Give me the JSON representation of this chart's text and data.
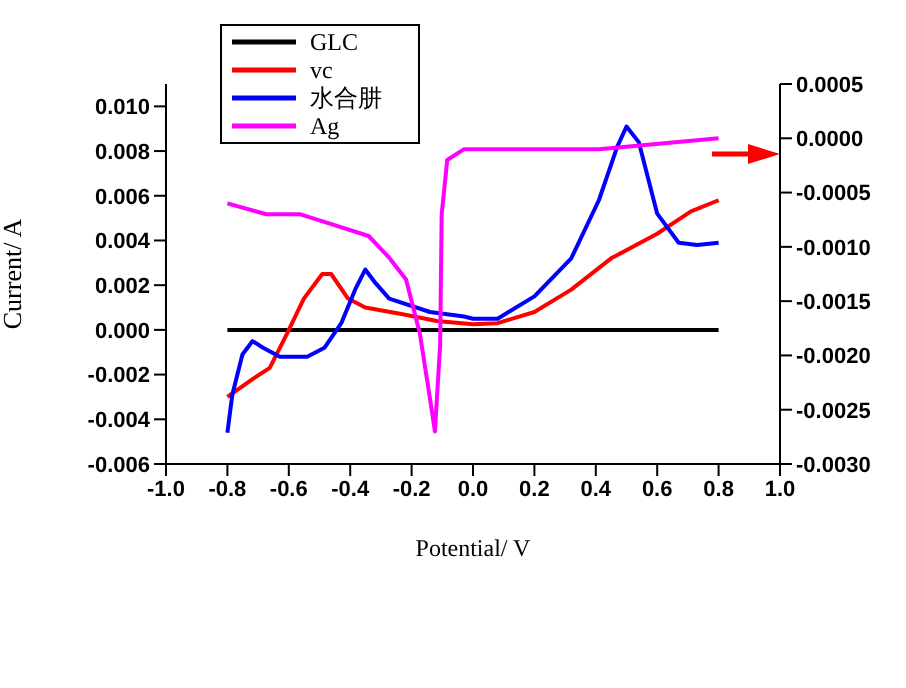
{
  "chart_data": {
    "type": "line",
    "xlabel": "Potential/ V",
    "ylabel": "Current/ A",
    "xlim": [
      -1.0,
      1.0
    ],
    "xticks": [
      {
        "value": -1.0,
        "label": "-1.0"
      },
      {
        "value": -0.8,
        "label": "-0.8"
      },
      {
        "value": -0.6,
        "label": "-0.6"
      },
      {
        "value": -0.4,
        "label": "-0.4"
      },
      {
        "value": -0.2,
        "label": "-0.2"
      },
      {
        "value": 0,
        "label": "0.0"
      },
      {
        "value": 0.2,
        "label": "0.2"
      },
      {
        "value": 0.4,
        "label": "0.4"
      },
      {
        "value": 0.6,
        "label": "0.6"
      },
      {
        "value": 0.8,
        "label": "0.8"
      },
      {
        "value": 1.0,
        "label": "1.0"
      }
    ],
    "ylim": [
      -0.006,
      0.011
    ],
    "yticks": [
      {
        "value": -0.006,
        "label": "-0.006"
      },
      {
        "value": -0.004,
        "label": "-0.004"
      },
      {
        "value": -0.002,
        "label": "-0.002"
      },
      {
        "value": 0,
        "label": "0.000"
      },
      {
        "value": 0.002,
        "label": "0.002"
      },
      {
        "value": 0.004,
        "label": "0.004"
      },
      {
        "value": 0.006,
        "label": "0.006"
      },
      {
        "value": 0.008,
        "label": "0.008"
      },
      {
        "value": 0.01,
        "label": "0.010"
      }
    ],
    "y2lim": [
      -0.003,
      0.0005
    ],
    "y2ticks": [
      {
        "value": -0.003,
        "label": "-0.0030"
      },
      {
        "value": -0.0025,
        "label": "-0.0025"
      },
      {
        "value": -0.002,
        "label": "-0.0020"
      },
      {
        "value": -0.0015,
        "label": "-0.0015"
      },
      {
        "value": -0.001,
        "label": "-0.0010"
      },
      {
        "value": -0.0005,
        "label": "-0.0005"
      },
      {
        "value": 0,
        "label": "0.0000"
      },
      {
        "value": 0.0005,
        "label": "0.0005"
      }
    ],
    "grid": false,
    "legend": "top left",
    "marker": "none",
    "line_style": "solid",
    "series": [
      {
        "name": "GLC",
        "color": "#000000",
        "x": [
          -0.8,
          0.8
        ],
        "values": [
          0,
          0
        ]
      },
      {
        "name": "vc",
        "color": "#ff0000",
        "x": [
          -0.8,
          -0.718,
          -0.662,
          -0.607,
          -0.551,
          -0.491,
          -0.462,
          -0.407,
          -0.351,
          -0.229,
          -0.118,
          0.0,
          0.08,
          0.2,
          0.32,
          0.45,
          0.6,
          0.71,
          0.8
        ],
        "values": [
          -0.003,
          -0.0022,
          -0.0017,
          -0.0002,
          0.0014,
          0.0025,
          0.0025,
          0.0014,
          0.001,
          0.0007,
          0.0004,
          0.00025,
          0.0003,
          0.0008,
          0.0018,
          0.0032,
          0.0043,
          0.0053,
          0.0058
        ]
      },
      {
        "name": "水合肼",
        "color": "#0000ff",
        "x": [
          -0.8,
          -0.784,
          -0.751,
          -0.718,
          -0.684,
          -0.629,
          -0.54,
          -0.484,
          -0.429,
          -0.384,
          -0.351,
          -0.318,
          -0.273,
          -0.14,
          -0.029,
          0.0,
          0.08,
          0.2,
          0.32,
          0.41,
          0.47,
          0.5,
          0.54,
          0.6,
          0.67,
          0.73,
          0.8
        ],
        "values": [
          -0.0046,
          -0.0029,
          -0.0011,
          -0.0005,
          -0.0008,
          -0.0012,
          -0.0012,
          -0.0008,
          0.0003,
          0.0018,
          0.0027,
          0.0021,
          0.0014,
          0.0008,
          0.0006,
          0.0005,
          0.0005,
          0.0015,
          0.0032,
          0.0058,
          0.0082,
          0.0091,
          0.0084,
          0.0052,
          0.0039,
          0.0038,
          0.0039
        ]
      },
      {
        "name": "Ag",
        "color": "#ff00ff",
        "axis": "y2",
        "x": [
          -0.8,
          -0.673,
          -0.562,
          -0.451,
          -0.34,
          -0.273,
          -0.218,
          -0.173,
          -0.14,
          -0.124,
          -0.107,
          -0.102,
          -0.084,
          -0.029,
          0.0,
          0.41,
          0.8
        ],
        "values": [
          -0.0006,
          -0.0007,
          -0.0007,
          -0.0008,
          -0.0009,
          -0.0011,
          -0.0013,
          -0.0018,
          -0.0024,
          -0.0027,
          -0.0019,
          -0.0007,
          -0.0002,
          -0.0001,
          -0.0001,
          -0.0001,
          0.0
        ]
      }
    ]
  }
}
